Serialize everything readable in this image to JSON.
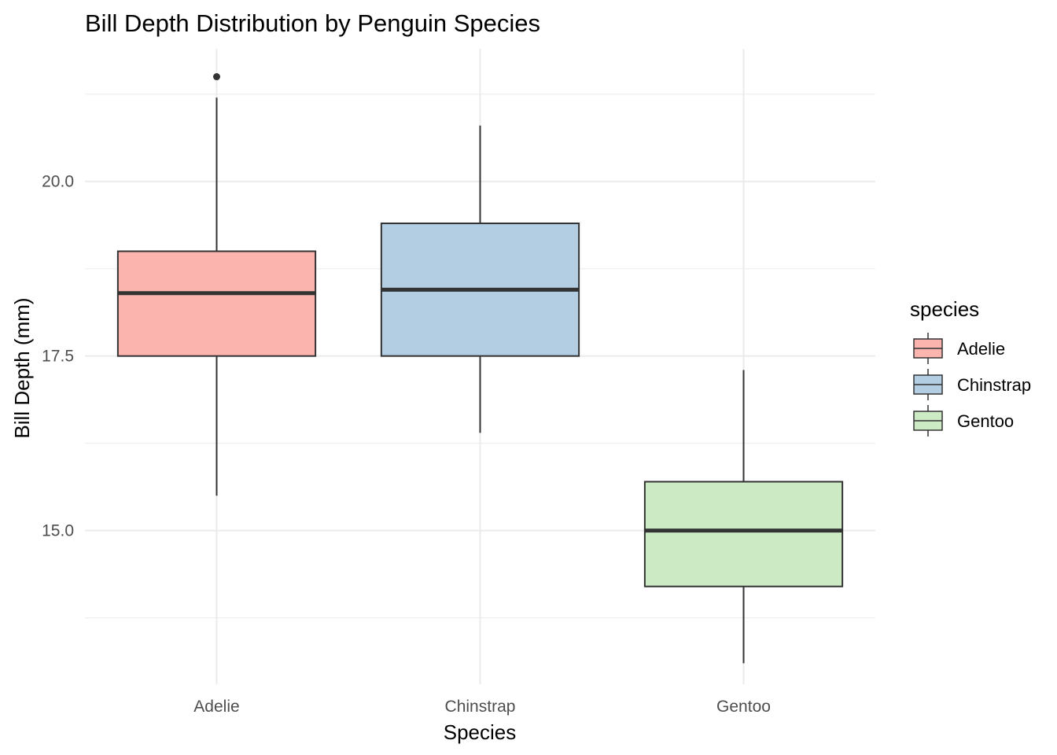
{
  "chart_data": {
    "type": "boxplot",
    "title": "Bill Depth Distribution by Penguin Species",
    "xlabel": "Species",
    "ylabel": "Bill Depth (mm)",
    "categories": [
      "Adelie",
      "Chinstrap",
      "Gentoo"
    ],
    "ylim": [
      12.8,
      21.9
    ],
    "y_ticks": [
      15.0,
      17.5,
      20.0
    ],
    "y_tick_labels": [
      "15.0",
      "17.5",
      "20.0"
    ],
    "y_minor_ticks": [
      13.75,
      16.25,
      18.75,
      21.25
    ],
    "grid": true,
    "boxes": [
      {
        "category": "Adelie",
        "min": 15.5,
        "q1": 17.5,
        "median": 18.4,
        "q3": 19.0,
        "max": 21.2,
        "outliers": [
          21.5
        ],
        "fill": "#FBB4AE"
      },
      {
        "category": "Chinstrap",
        "min": 16.4,
        "q1": 17.5,
        "median": 18.45,
        "q3": 19.4,
        "max": 20.8,
        "outliers": [],
        "fill": "#B3CDE3"
      },
      {
        "category": "Gentoo",
        "min": 13.1,
        "q1": 14.2,
        "median": 15.0,
        "q3": 15.7,
        "max": 17.3,
        "outliers": [],
        "fill": "#CCEBC5"
      }
    ],
    "legend": {
      "title": "species",
      "position": "right",
      "entries": [
        "Adelie",
        "Chinstrap",
        "Gentoo"
      ]
    },
    "colors": {
      "box_stroke": "#333333",
      "grid": "#ebebeb",
      "tick_text": "#4d4d4d"
    }
  }
}
